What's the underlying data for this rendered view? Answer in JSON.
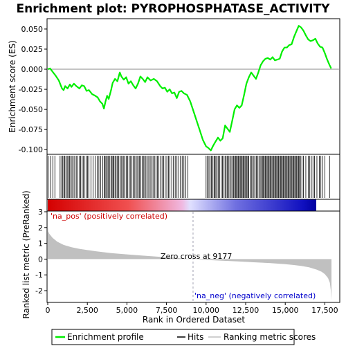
{
  "chart_data": {
    "type": "line",
    "title": "Enrichment plot: PYROPHOSPHATASE_ACTIVITY",
    "top_panel": {
      "ylabel": "Enrichment score (ES)",
      "ylim": [
        -0.105,
        0.062
      ],
      "yticks": [
        0.05,
        0.025,
        0.0,
        -0.025,
        -0.05,
        -0.075,
        -0.1
      ],
      "ytick_labels": [
        "0.050",
        "0.025",
        "0.000",
        "-0.025",
        "-0.050",
        "-0.075",
        "-0.100"
      ],
      "series_name": "Enrichment profile",
      "series_color": "#00ee00",
      "points": [
        [
          0,
          0.0
        ],
        [
          150,
          0.001
        ],
        [
          300,
          -0.003
        ],
        [
          500,
          -0.008
        ],
        [
          700,
          -0.014
        ],
        [
          900,
          -0.024
        ],
        [
          1000,
          -0.026
        ],
        [
          1100,
          -0.021
        ],
        [
          1250,
          -0.024
        ],
        [
          1400,
          -0.019
        ],
        [
          1500,
          -0.022
        ],
        [
          1650,
          -0.018
        ],
        [
          1800,
          -0.021
        ],
        [
          2000,
          -0.024
        ],
        [
          2150,
          -0.02
        ],
        [
          2300,
          -0.021
        ],
        [
          2450,
          -0.027
        ],
        [
          2600,
          -0.026
        ],
        [
          2800,
          -0.031
        ],
        [
          3000,
          -0.033
        ],
        [
          3150,
          -0.035
        ],
        [
          3300,
          -0.04
        ],
        [
          3450,
          -0.043
        ],
        [
          3550,
          -0.049
        ],
        [
          3650,
          -0.04
        ],
        [
          3750,
          -0.033
        ],
        [
          3850,
          -0.037
        ],
        [
          4000,
          -0.026
        ],
        [
          4100,
          -0.017
        ],
        [
          4250,
          -0.012
        ],
        [
          4400,
          -0.015
        ],
        [
          4550,
          -0.004
        ],
        [
          4650,
          -0.009
        ],
        [
          4800,
          -0.013
        ],
        [
          4950,
          -0.01
        ],
        [
          5100,
          -0.018
        ],
        [
          5250,
          -0.015
        ],
        [
          5400,
          -0.02
        ],
        [
          5550,
          -0.024
        ],
        [
          5700,
          -0.018
        ],
        [
          5850,
          -0.009
        ],
        [
          6000,
          -0.012
        ],
        [
          6150,
          -0.016
        ],
        [
          6300,
          -0.01
        ],
        [
          6500,
          -0.014
        ],
        [
          6700,
          -0.012
        ],
        [
          6900,
          -0.015
        ],
        [
          7100,
          -0.021
        ],
        [
          7250,
          -0.024
        ],
        [
          7400,
          -0.023
        ],
        [
          7550,
          -0.028
        ],
        [
          7700,
          -0.025
        ],
        [
          7850,
          -0.03
        ],
        [
          8000,
          -0.029
        ],
        [
          8150,
          -0.036
        ],
        [
          8300,
          -0.028
        ],
        [
          8450,
          -0.027
        ],
        [
          8600,
          -0.03
        ],
        [
          8800,
          -0.032
        ],
        [
          9000,
          -0.04
        ],
        [
          9200,
          -0.052
        ],
        [
          9400,
          -0.064
        ],
        [
          9600,
          -0.076
        ],
        [
          9800,
          -0.088
        ],
        [
          10000,
          -0.096
        ],
        [
          10150,
          -0.098
        ],
        [
          10300,
          -0.101
        ],
        [
          10450,
          -0.095
        ],
        [
          10600,
          -0.09
        ],
        [
          10750,
          -0.085
        ],
        [
          10900,
          -0.089
        ],
        [
          11050,
          -0.086
        ],
        [
          11200,
          -0.07
        ],
        [
          11350,
          -0.074
        ],
        [
          11500,
          -0.078
        ],
        [
          11650,
          -0.064
        ],
        [
          11800,
          -0.05
        ],
        [
          11950,
          -0.045
        ],
        [
          12100,
          -0.048
        ],
        [
          12250,
          -0.045
        ],
        [
          12400,
          -0.032
        ],
        [
          12550,
          -0.018
        ],
        [
          12700,
          -0.01
        ],
        [
          12850,
          -0.004
        ],
        [
          13000,
          -0.008
        ],
        [
          13150,
          -0.012
        ],
        [
          13300,
          -0.004
        ],
        [
          13450,
          0.005
        ],
        [
          13600,
          0.01
        ],
        [
          13750,
          0.013
        ],
        [
          13900,
          0.014
        ],
        [
          14050,
          0.012
        ],
        [
          14200,
          0.015
        ],
        [
          14350,
          0.011
        ],
        [
          14500,
          0.012
        ],
        [
          14650,
          0.013
        ],
        [
          14800,
          0.022
        ],
        [
          14950,
          0.027
        ],
        [
          15100,
          0.027
        ],
        [
          15250,
          0.03
        ],
        [
          15400,
          0.031
        ],
        [
          15550,
          0.04
        ],
        [
          15700,
          0.047
        ],
        [
          15850,
          0.054
        ],
        [
          16000,
          0.052
        ],
        [
          16150,
          0.048
        ],
        [
          16300,
          0.042
        ],
        [
          16450,
          0.037
        ],
        [
          16600,
          0.035
        ],
        [
          16750,
          0.036
        ],
        [
          16900,
          0.038
        ],
        [
          17050,
          0.032
        ],
        [
          17200,
          0.028
        ],
        [
          17350,
          0.027
        ],
        [
          17500,
          0.02
        ],
        [
          17650,
          0.012
        ],
        [
          17800,
          0.005
        ],
        [
          17900,
          0.001
        ]
      ]
    },
    "hits_panel": {
      "hit_ranks": [
        30,
        180,
        320,
        450,
        780,
        880,
        950,
        1020,
        1080,
        1150,
        1230,
        1300,
        1370,
        1450,
        1530,
        1610,
        1700,
        1800,
        1900,
        2000,
        2080,
        2160,
        2240,
        2310,
        2420,
        2520,
        2600,
        2730,
        2860,
        3000,
        3120,
        3230,
        3350,
        3480,
        3560,
        3620,
        3680,
        3760,
        3830,
        3920,
        4000,
        4060,
        4120,
        4180,
        4250,
        4320,
        4400,
        4480,
        4560,
        4640,
        4720,
        4800,
        4880,
        4960,
        5050,
        5130,
        5210,
        5300,
        5390,
        5470,
        5560,
        5640,
        5720,
        5800,
        5880,
        5960,
        6040,
        6120,
        6200,
        6290,
        6380,
        6470,
        6560,
        6650,
        6740,
        6830,
        6920,
        7020,
        7120,
        7220,
        7320,
        7420,
        7520,
        7620,
        7720,
        7830,
        7940,
        8050,
        8160,
        8270,
        8380,
        8490,
        8600,
        8720,
        8850,
        10000,
        10080,
        10180,
        10260,
        10340,
        10420,
        10500,
        10560,
        10620,
        10700,
        10780,
        10860,
        10950,
        11040,
        11130,
        11200,
        11270,
        11340,
        11420,
        11500,
        11580,
        11660,
        11740,
        11800,
        11860,
        11920,
        11980,
        12040,
        12100,
        12160,
        12220,
        12280,
        12340,
        12400,
        12460,
        12520,
        12580,
        12640,
        12700,
        12780,
        12860,
        12940,
        13020,
        13100,
        13180,
        13260,
        13340,
        13420,
        13500,
        13560,
        13620,
        13680,
        13740,
        13800,
        13860,
        13920,
        13980,
        14040,
        14100,
        14160,
        14220,
        14280,
        14340,
        14400,
        14460,
        14520,
        14580,
        14640,
        14700,
        14760,
        14820,
        14880,
        14940,
        15000,
        15060,
        15120,
        15180,
        15240,
        15300,
        15360,
        15420,
        15480,
        15540,
        15600,
        15660,
        15720,
        15780,
        15840,
        15900,
        15960,
        16050,
        16150,
        16300,
        16450,
        16550,
        16650,
        16750,
        16850,
        17000,
        17150,
        17250,
        17350,
        17500,
        17800
      ]
    },
    "bottom_panel": {
      "ylabel": "Ranked list metric (PreRanked)",
      "xlabel": "Rank in Ordered Dataset",
      "ylim": [
        -2.7,
        3.0
      ],
      "yticks": [
        3,
        2,
        1,
        0,
        -1,
        -2
      ],
      "ytick_labels": [
        "3",
        "2",
        "1",
        "0",
        "-1",
        "-2"
      ],
      "metric_curve": [
        [
          0,
          2.2
        ],
        [
          30,
          1.75
        ],
        [
          100,
          1.6
        ],
        [
          300,
          1.35
        ],
        [
          600,
          1.1
        ],
        [
          1000,
          0.9
        ],
        [
          1500,
          0.75
        ],
        [
          2000,
          0.65
        ],
        [
          3000,
          0.5
        ],
        [
          4000,
          0.38
        ],
        [
          5000,
          0.3
        ],
        [
          6000,
          0.22
        ],
        [
          7000,
          0.15
        ],
        [
          8000,
          0.08
        ],
        [
          9177,
          0.0
        ],
        [
          10000,
          -0.05
        ],
        [
          11000,
          -0.1
        ],
        [
          12000,
          -0.15
        ],
        [
          13000,
          -0.2
        ],
        [
          14000,
          -0.25
        ],
        [
          15000,
          -0.32
        ],
        [
          15500,
          -0.37
        ],
        [
          16000,
          -0.43
        ],
        [
          16500,
          -0.52
        ],
        [
          17000,
          -0.67
        ],
        [
          17300,
          -0.8
        ],
        [
          17500,
          -0.95
        ],
        [
          17700,
          -1.2
        ],
        [
          17820,
          -1.5
        ],
        [
          17880,
          -2.0
        ],
        [
          17920,
          -2.6
        ]
      ],
      "zero_cross_rank": 9177,
      "zero_cross_label": "Zero cross at 9177",
      "pos_label": "'na_pos' (positively correlated)",
      "neg_label": "'na_neg' (negatively correlated)"
    },
    "xlim": [
      0,
      18400
    ],
    "xticks": [
      0,
      2500,
      5000,
      7500,
      10000,
      12500,
      15000,
      17500
    ],
    "xtick_labels": [
      "0",
      "2,500",
      "5,000",
      "7,500",
      "10,000",
      "12,500",
      "15,000",
      "17,500"
    ],
    "total_ranks": 17920,
    "legend": {
      "items": [
        {
          "label": "Enrichment profile",
          "color": "#00ee00"
        },
        {
          "label": "Hits",
          "color": "#000000"
        },
        {
          "label": "Ranking metric scores",
          "color": "#c0c0c0"
        }
      ]
    },
    "colors": {
      "pos_label": "#cc0000",
      "neg_label": "#0000cc",
      "metric_fill": "#c0c0c0",
      "zero_line": "#a0a0b0"
    }
  }
}
